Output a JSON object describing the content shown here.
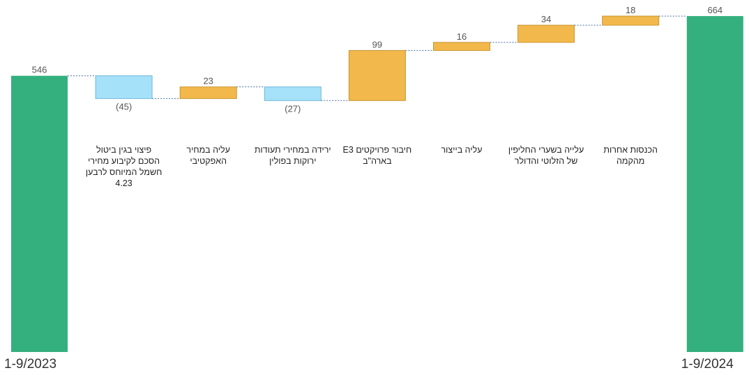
{
  "chart_data": {
    "type": "bar",
    "subtype": "waterfall",
    "title": "",
    "xlabel": "",
    "ylabel": "",
    "categories": [
      "1-9/2023",
      "פיצוי בגין ביטול הסכם לקיבוע מחירי חשמל המיוחס לרבען 4.23",
      "עליה במחיר האפקטיבי",
      "ירידה במחירי תעודות ירוקות בפולין",
      "חיבור פרויקטים E3 בארה\"ב",
      "עליה בייצור",
      "עלייה בשערי החליפין של הזלוטי והדולר",
      "הכנסות אחרות מהקמה",
      "1-9/2024"
    ],
    "values": [
      546,
      -45,
      23,
      -27,
      99,
      16,
      34,
      18,
      664
    ],
    "value_labels": [
      "546",
      "(45)",
      "23",
      "(27)",
      "99",
      "16",
      "34",
      "18",
      "664"
    ],
    "kinds": [
      "total",
      "decrease",
      "increase",
      "decrease",
      "increase",
      "increase",
      "increase",
      "increase",
      "total"
    ],
    "ylim": [
      0,
      680
    ],
    "grid": false,
    "legend": "none",
    "colors": {
      "total": "#34b07f",
      "increase": "#f2b84b",
      "decrease": "#a6e1fa",
      "increase_border": "#c9962f",
      "decrease_border": "#6fb8d8",
      "connector": "#4a6fa5"
    }
  }
}
